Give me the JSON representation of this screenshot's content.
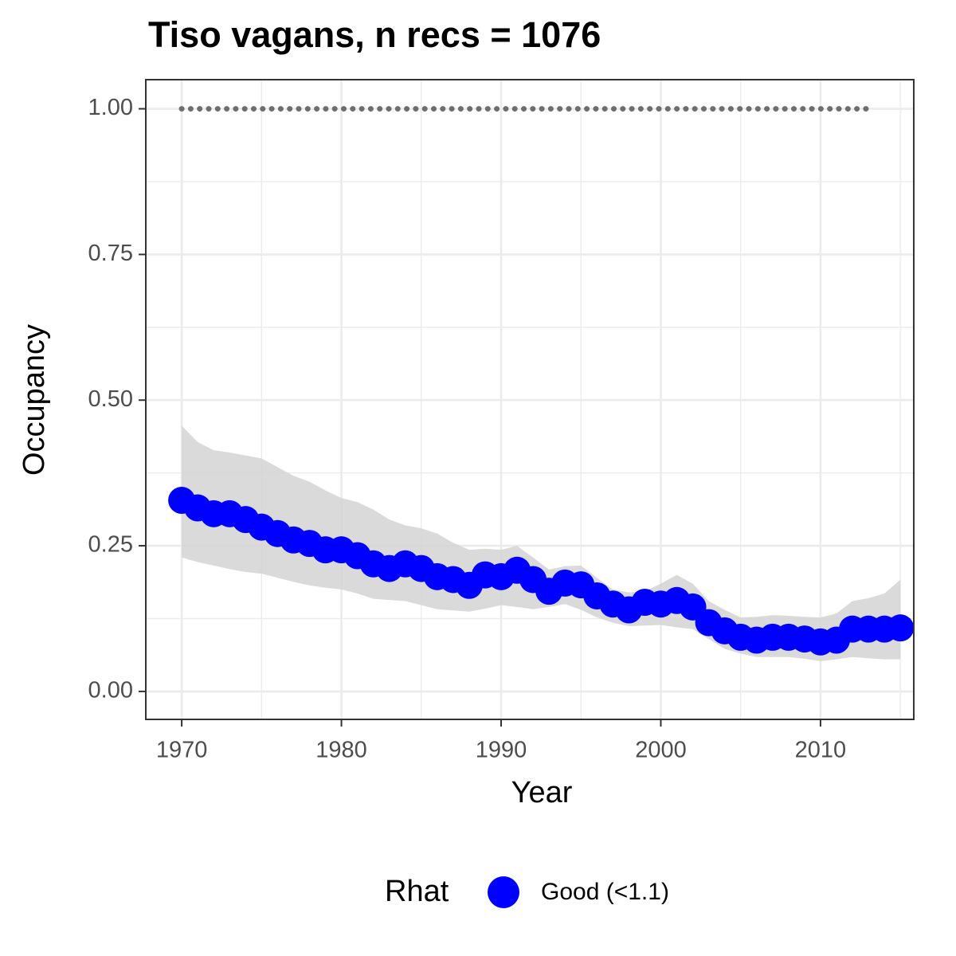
{
  "chart_data": {
    "type": "line",
    "title": "Tiso vagans, n recs = 1076",
    "x_label": "Year",
    "y_label": "Occupancy",
    "legend_title": "Rhat",
    "x": [
      1970,
      1971,
      1972,
      1973,
      1974,
      1975,
      1976,
      1977,
      1978,
      1979,
      1980,
      1981,
      1982,
      1983,
      1984,
      1985,
      1986,
      1987,
      1988,
      1989,
      1990,
      1991,
      1992,
      1993,
      1994,
      1995,
      1996,
      1997,
      1998,
      1999,
      2000,
      2001,
      2002,
      2003,
      2004,
      2005,
      2006,
      2007,
      2008,
      2009,
      2010,
      2011,
      2012,
      2013,
      2014,
      2015
    ],
    "series": [
      {
        "name": "Good (<1.1)",
        "color": "#0000ff",
        "values": [
          0.328,
          0.315,
          0.305,
          0.305,
          0.295,
          0.282,
          0.271,
          0.26,
          0.254,
          0.243,
          0.243,
          0.233,
          0.219,
          0.211,
          0.219,
          0.211,
          0.197,
          0.192,
          0.182,
          0.2,
          0.197,
          0.208,
          0.192,
          0.172,
          0.186,
          0.183,
          0.164,
          0.15,
          0.14,
          0.153,
          0.15,
          0.156,
          0.145,
          0.118,
          0.104,
          0.093,
          0.088,
          0.093,
          0.093,
          0.09,
          0.085,
          0.088,
          0.107,
          0.107,
          0.107,
          0.109
        ]
      }
    ],
    "ci_upper": [
      0.456,
      0.428,
      0.414,
      0.41,
      0.405,
      0.4,
      0.385,
      0.37,
      0.36,
      0.345,
      0.332,
      0.325,
      0.312,
      0.295,
      0.285,
      0.28,
      0.271,
      0.255,
      0.243,
      0.245,
      0.243,
      0.25,
      0.23,
      0.209,
      0.215,
      0.216,
      0.195,
      0.175,
      0.17,
      0.172,
      0.185,
      0.2,
      0.185,
      0.155,
      0.14,
      0.127,
      0.128,
      0.131,
      0.13,
      0.128,
      0.127,
      0.134,
      0.155,
      0.16,
      0.168,
      0.192
    ],
    "ci_lower": [
      0.23,
      0.222,
      0.216,
      0.21,
      0.205,
      0.202,
      0.195,
      0.188,
      0.182,
      0.178,
      0.175,
      0.168,
      0.159,
      0.157,
      0.155,
      0.148,
      0.141,
      0.139,
      0.137,
      0.142,
      0.148,
      0.145,
      0.141,
      0.145,
      0.15,
      0.14,
      0.127,
      0.118,
      0.112,
      0.113,
      0.114,
      0.11,
      0.107,
      0.09,
      0.073,
      0.065,
      0.059,
      0.059,
      0.059,
      0.056,
      0.052,
      0.055,
      0.059,
      0.057,
      0.055,
      0.055
    ],
    "ci_color": "#d3d3d3",
    "reference_line": {
      "color": "#6e6e6e",
      "values": [
        1,
        1,
        1,
        1,
        1,
        1,
        1,
        1,
        1,
        1,
        1,
        1,
        1,
        1,
        1,
        1,
        1,
        1,
        1,
        1,
        1,
        1,
        1,
        1,
        1,
        1,
        1,
        1,
        1,
        1,
        1,
        1,
        1,
        1,
        1,
        1,
        1,
        1,
        1,
        1,
        1,
        1,
        1,
        1,
        null,
        null
      ]
    },
    "xlim": [
      1967.75,
      2015.84
    ],
    "ylim": [
      -0.048,
      1.05
    ],
    "xticks": [
      1970,
      1980,
      1990,
      2000,
      2010
    ],
    "yticks": [
      {
        "value": 0,
        "label": "0.00"
      },
      {
        "value": 0.25,
        "label": "0.25"
      },
      {
        "value": 0.5,
        "label": "0.50"
      },
      {
        "value": 0.75,
        "label": "0.75"
      },
      {
        "value": 1,
        "label": "1.00"
      }
    ],
    "grid": true
  }
}
